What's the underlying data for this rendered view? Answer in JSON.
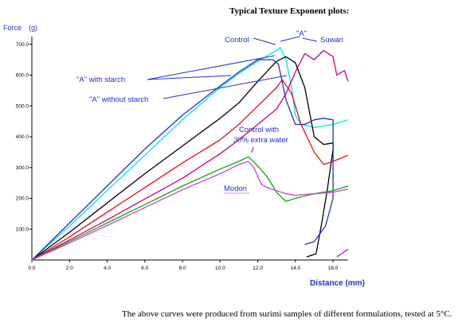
{
  "page": {
    "heading": "Typical Texture Exponent plots:",
    "caption": "The above curves were produced from surimi samples of different formulations, tested at 5°C."
  },
  "chart_data": {
    "type": "line",
    "title": "Typical Texture Exponent plots:",
    "ylabel": "Force (g)",
    "xlabel": "Distance (mm)",
    "xlim": [
      0,
      16.8
    ],
    "ylim": [
      0,
      720
    ],
    "xticks": [
      "0.0",
      "2.0",
      "4.0",
      "6.0",
      "8.0",
      "10.0",
      "12.0",
      "14.0",
      "16.0"
    ],
    "yticks": [
      "100.0",
      "200.0",
      "300.0",
      "400.0",
      "500.0",
      "600.0",
      "700.0"
    ],
    "grid": false,
    "legend": "none",
    "series": [
      {
        "name": "Control",
        "color": "#00e0f0",
        "points": [
          [
            0,
            0
          ],
          [
            2,
            110
          ],
          [
            4,
            225
          ],
          [
            6,
            340
          ],
          [
            8,
            455
          ],
          [
            10,
            560
          ],
          [
            11,
            605
          ],
          [
            12,
            645
          ],
          [
            13,
            680
          ],
          [
            13.2,
            690
          ],
          [
            13.5,
            650
          ],
          [
            13.8,
            560
          ],
          [
            14,
            470
          ],
          [
            14.3,
            440
          ],
          [
            15,
            430
          ],
          [
            16,
            440
          ],
          [
            16.8,
            455
          ]
        ]
      },
      {
        "name": "Suwari",
        "color": "#cc0077",
        "points": [
          [
            0,
            0
          ],
          [
            2,
            65
          ],
          [
            4,
            130
          ],
          [
            6,
            198
          ],
          [
            8,
            265
          ],
          [
            10,
            345
          ],
          [
            11,
            390
          ],
          [
            12,
            440
          ],
          [
            13,
            490
          ],
          [
            13.5,
            540
          ],
          [
            14,
            610
          ],
          [
            14.5,
            670
          ],
          [
            15,
            650
          ],
          [
            15.5,
            680
          ],
          [
            16,
            660
          ],
          [
            16.2,
            600
          ],
          [
            16.6,
            615
          ],
          [
            16.8,
            580
          ]
        ]
      },
      {
        "name": "\"A\"",
        "color": "#000000",
        "points": [
          [
            0,
            0
          ],
          [
            2,
            90
          ],
          [
            4,
            185
          ],
          [
            6,
            280
          ],
          [
            8,
            370
          ],
          [
            10,
            460
          ],
          [
            11,
            510
          ],
          [
            12,
            580
          ],
          [
            13,
            645
          ],
          [
            13.5,
            660
          ],
          [
            14,
            640
          ],
          [
            14.5,
            560
          ],
          [
            15,
            400
          ],
          [
            15.5,
            375
          ],
          [
            16,
            380
          ],
          [
            16,
            360
          ],
          [
            15.7,
            230
          ],
          [
            15.4,
            120
          ],
          [
            15.1,
            20
          ],
          [
            14.6,
            10
          ]
        ]
      },
      {
        "name": "\"A\" with starch",
        "color": "#2030d0",
        "points": [
          [
            0,
            0
          ],
          [
            2,
            120
          ],
          [
            4,
            240
          ],
          [
            6,
            360
          ],
          [
            8,
            470
          ],
          [
            10,
            565
          ],
          [
            11,
            610
          ],
          [
            12,
            650
          ],
          [
            12.8,
            650
          ],
          [
            13.1,
            635
          ],
          [
            13.5,
            520
          ],
          [
            14,
            440
          ],
          [
            14.5,
            440
          ],
          [
            15,
            455
          ],
          [
            15.5,
            460
          ],
          [
            16,
            455
          ],
          [
            16,
            200
          ],
          [
            15.6,
            110
          ],
          [
            15,
            60
          ],
          [
            14.5,
            50
          ]
        ]
      },
      {
        "name": "\"A\" without starch",
        "color": "#e01010",
        "points": [
          [
            0,
            0
          ],
          [
            2,
            75
          ],
          [
            4,
            155
          ],
          [
            6,
            235
          ],
          [
            8,
            315
          ],
          [
            10,
            390
          ],
          [
            11,
            440
          ],
          [
            12,
            500
          ],
          [
            13,
            560
          ],
          [
            13.3,
            585
          ],
          [
            13.8,
            540
          ],
          [
            14.3,
            440
          ],
          [
            15,
            350
          ],
          [
            15.5,
            310
          ],
          [
            16,
            320
          ],
          [
            16.8,
            340
          ]
        ]
      },
      {
        "name": "Control with 30% extra water",
        "color": "#00b000",
        "points": [
          [
            0,
            0
          ],
          [
            2,
            60
          ],
          [
            4,
            120
          ],
          [
            6,
            180
          ],
          [
            8,
            240
          ],
          [
            10,
            295
          ],
          [
            11,
            320
          ],
          [
            11.5,
            335
          ],
          [
            12,
            305
          ],
          [
            12.5,
            270
          ],
          [
            13,
            220
          ],
          [
            13.5,
            190
          ],
          [
            14,
            200
          ],
          [
            15,
            215
          ],
          [
            16,
            225
          ],
          [
            16.8,
            240
          ]
        ]
      },
      {
        "name": "Modori",
        "color": "#d040d0",
        "points": [
          [
            0,
            0
          ],
          [
            2,
            55
          ],
          [
            4,
            112
          ],
          [
            6,
            170
          ],
          [
            8,
            228
          ],
          [
            10,
            280
          ],
          [
            11,
            310
          ],
          [
            11.5,
            320
          ],
          [
            11.8,
            300
          ],
          [
            12.2,
            245
          ],
          [
            12.5,
            235
          ],
          [
            13,
            225
          ],
          [
            13.5,
            215
          ],
          [
            14,
            210
          ],
          [
            15,
            215
          ],
          [
            16,
            220
          ],
          [
            16.8,
            230
          ]
        ]
      },
      {
        "name": "",
        "color": "#c000c0",
        "points": [
          [
            16.2,
            10
          ],
          [
            16.8,
            35
          ]
        ]
      }
    ],
    "annotations": [
      {
        "text": "Control",
        "color": "#2030d0",
        "underline": false
      },
      {
        "text": "\"A\"",
        "color": "#2030d0",
        "underline": false
      },
      {
        "text": "Suwari",
        "color": "#2030d0",
        "underline": false
      },
      {
        "text": "\"A\" with starch",
        "color": "#2030d0",
        "underline": false
      },
      {
        "text": "\"A\" without starch",
        "color": "#2030d0",
        "underline": false
      },
      {
        "text": "Control with",
        "color": "#2030d0",
        "underline": false
      },
      {
        "text": "30% extra water",
        "color": "#2030d0",
        "underline": false
      },
      {
        "text": "Modori",
        "color": "#2030d0",
        "underline": true
      }
    ]
  }
}
